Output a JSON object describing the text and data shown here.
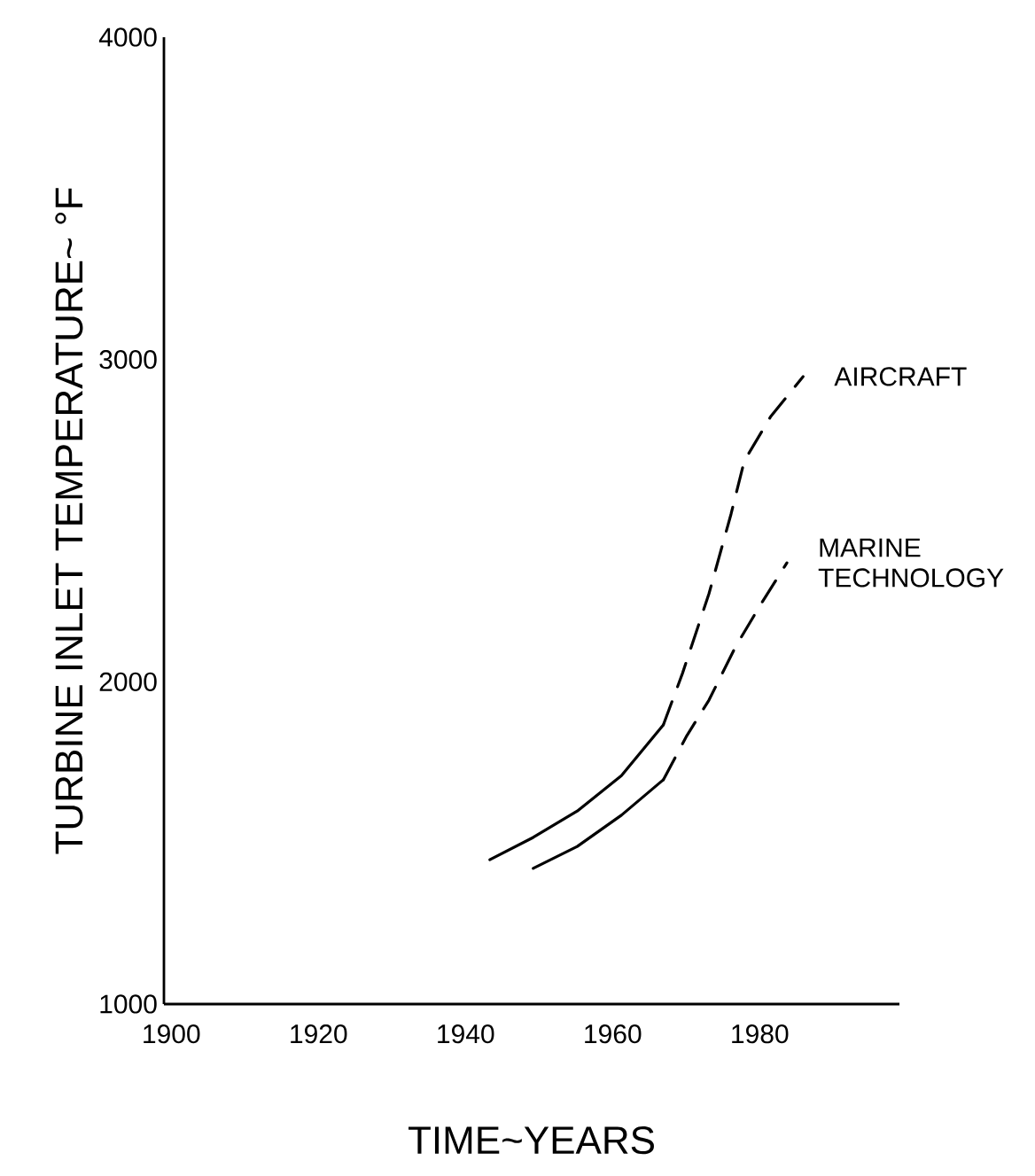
{
  "chart_data": {
    "type": "line",
    "xlabel": "TIME~YEARS",
    "ylabel": "TURBINE INLET TEMPERATURE~ °F",
    "xlim": [
      1899,
      1999
    ],
    "ylim": [
      1000,
      4000
    ],
    "xticks": [
      1900,
      1920,
      1940,
      1960,
      1980
    ],
    "yticks": [
      1000,
      2000,
      3000,
      4000
    ],
    "grid": false,
    "marker": "none",
    "series": [
      {
        "color": "#000000",
        "line_style": "solid",
        "x": [
          1943.3,
          1949.2,
          1955.2,
          1961.2,
          1966.9
        ],
        "values": [
          1448,
          1517,
          1599,
          1709,
          1866
        ]
      },
      {
        "name": "AIRCRAFT",
        "color": "#000000",
        "line_style": "dashed",
        "x": [
          1966.9,
          1969.5,
          1973.1,
          1976.1,
          1977.9,
          1981.5,
          1985.9
        ],
        "values": [
          1866,
          2026,
          2273,
          2520,
          2685,
          2823,
          2947
        ]
      },
      {
        "color": "#000000",
        "line_style": "solid",
        "x": [
          1949.2,
          1955.2,
          1961.2,
          1966.9
        ],
        "values": [
          1421,
          1489,
          1586,
          1696
        ]
      },
      {
        "name": "MARINE TECHNOLOGY",
        "color": "#000000",
        "line_style": "dashed",
        "x": [
          1966.9,
          1970.1,
          1973.1,
          1976.7,
          1980.3,
          1983.7
        ],
        "values": [
          1696,
          1833,
          1943,
          2108,
          2246,
          2369
        ]
      }
    ]
  }
}
